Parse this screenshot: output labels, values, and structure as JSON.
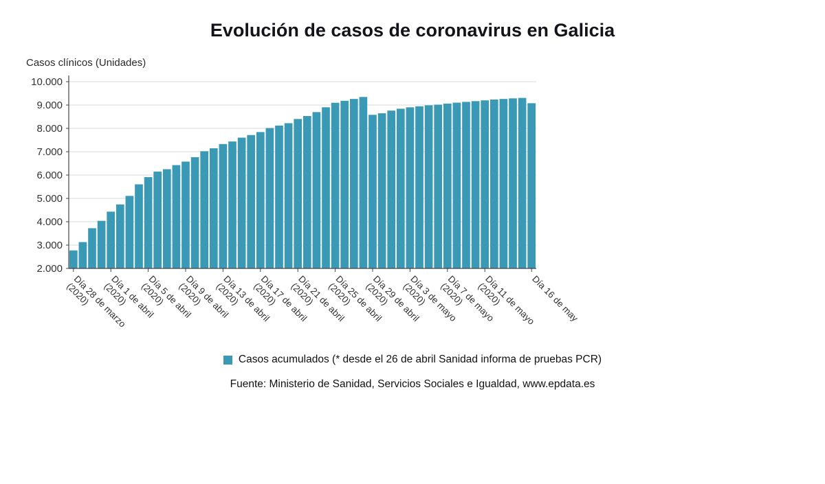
{
  "title": "Evolución de casos de coronavirus en Galicia",
  "y_axis_title": "Casos clínicos (Unidades)",
  "legend": {
    "label": "Casos acumulados (* desde el 26 de abril Sanidad informa de pruebas PCR)",
    "swatch_color": "#3a9ab5"
  },
  "source": "Fuente: Ministerio de Sanidad, Servicios Sociales e Igualdad, www.epdata.es",
  "chart_data": {
    "type": "bar",
    "title": "Evolución de casos de coronavirus en Galicia",
    "xlabel": "",
    "ylabel": "Casos clínicos (Unidades)",
    "ylim": [
      2000,
      10000
    ],
    "y_tick_step": 1000,
    "y_tick_labels": [
      "2.000",
      "3.000",
      "4.000",
      "5.000",
      "6.000",
      "7.000",
      "8.000",
      "9.000",
      "10.000"
    ],
    "grid": "horizontal",
    "bar_color": "#3a9ab5",
    "axis_color": "#444444",
    "gridline_color": "#d8d8d8",
    "legend_position": "bottom",
    "x_tick_indices": [
      0,
      4,
      8,
      12,
      16,
      20,
      24,
      28,
      32,
      36,
      40,
      44,
      49
    ],
    "x_tick_labels": [
      [
        "Día 28 de marzo",
        "(2020)"
      ],
      [
        "Día 1 de abril",
        "(2020)"
      ],
      [
        "Día 5 de abril",
        "(2020)"
      ],
      [
        "Día 9 de abril",
        "(2020)"
      ],
      [
        "Día 13 de abril",
        "(2020)"
      ],
      [
        "Día 17 de abril",
        "(2020)"
      ],
      [
        "Día 21 de abril",
        "(2020)"
      ],
      [
        "Día 25 de abril",
        "(2020)"
      ],
      [
        "Día 29 de abril",
        "(2020)"
      ],
      [
        "Día 3 de mayo",
        "(2020)"
      ],
      [
        "Día 7 de mayo",
        "(2020)"
      ],
      [
        "Día 11 de mayo",
        "(2020)"
      ],
      [
        "Día 16 de may",
        ""
      ]
    ],
    "series": [
      {
        "name": "Casos acumulados",
        "values": [
          2772,
          3129,
          3723,
          4039,
          4432,
          4742,
          5108,
          5603,
          5911,
          6151,
          6251,
          6426,
          6576,
          6764,
          7021,
          7147,
          7329,
          7438,
          7603,
          7715,
          7842,
          8014,
          8121,
          8223,
          8402,
          8530,
          8697,
          8904,
          9097,
          9183,
          9261,
          9345,
          8581,
          8647,
          8761,
          8842,
          8902,
          8946,
          8988,
          9016,
          9063,
          9102,
          9135,
          9167,
          9201,
          9235,
          9261,
          9285,
          9304,
          9077
        ]
      }
    ]
  }
}
